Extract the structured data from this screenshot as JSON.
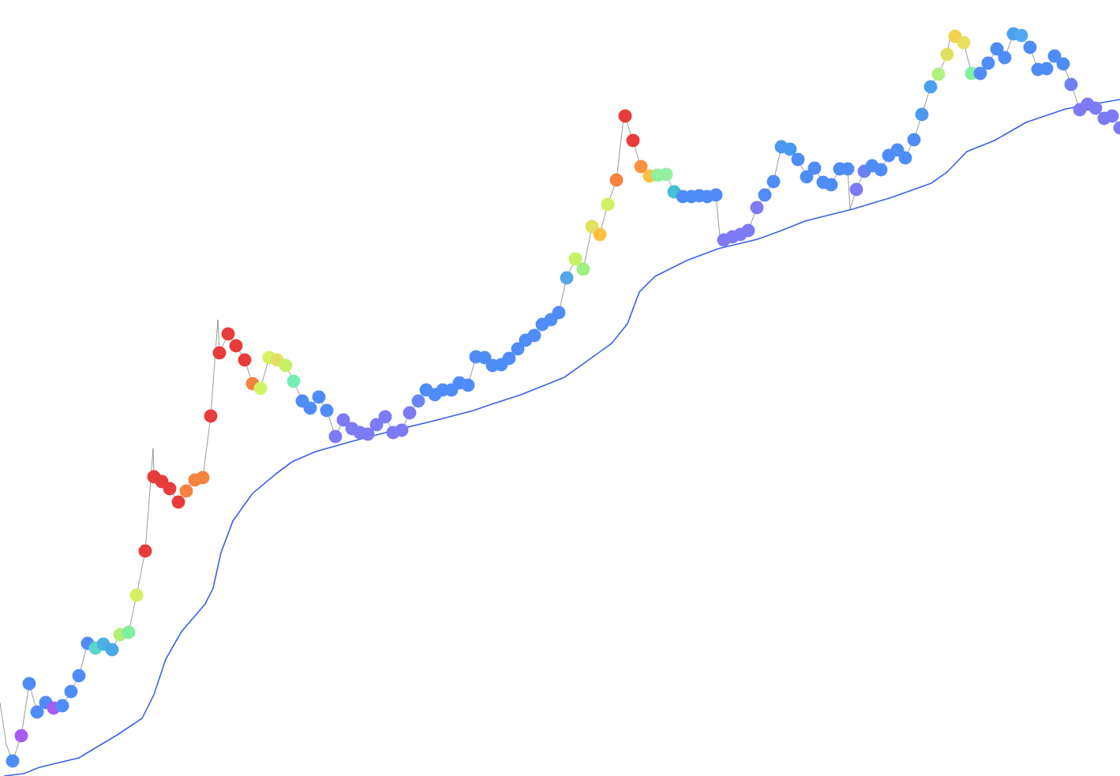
{
  "chart_data": {
    "type": "scatter",
    "xlim": [
      0,
      1419
    ],
    "ylim": [
      0,
      983
    ],
    "grid": false,
    "tick_labels": false,
    "series": [
      {
        "type": "line",
        "color": "#999999",
        "x": [
          0,
          8,
          16,
          27,
          37,
          47,
          58,
          68,
          79,
          90,
          100,
          111,
          121,
          131,
          142,
          152,
          163,
          173,
          184,
          194,
          195,
          205,
          215,
          226,
          236,
          247,
          257,
          267,
          276,
          278,
          289,
          299,
          310,
          320,
          330,
          341,
          351,
          362,
          372,
          383,
          393,
          404,
          414,
          425,
          435,
          446,
          456,
          466,
          477,
          488,
          498,
          509,
          519,
          530,
          540,
          551,
          561,
          572,
          582,
          593,
          603,
          614,
          624,
          635,
          645,
          656,
          666,
          677,
          687,
          698,
          708,
          718,
          729,
          739,
          750,
          760,
          770,
          781,
          790,
          792,
          802,
          812,
          823,
          833,
          844,
          854,
          865,
          876,
          886,
          896,
          907,
          912,
          917,
          928,
          938,
          948,
          959,
          969,
          980,
          990,
          1001,
          1011,
          1022,
          1032,
          1043,
          1053,
          1064,
          1074,
          1077,
          1085,
          1095,
          1105,
          1116,
          1126,
          1137,
          1147,
          1158,
          1168,
          1179,
          1189,
          1200,
          1205,
          1210,
          1221,
          1231,
          1242,
          1252,
          1263,
          1273,
          1284,
          1294,
          1305,
          1315,
          1326,
          1336,
          1347,
          1357,
          1368,
          1378,
          1388,
          1399,
          1409,
          1419
        ],
        "values": [
          93,
          40,
          19,
          51,
          117,
          81,
          93,
          86,
          89,
          107,
          127,
          168,
          162,
          167,
          160,
          179,
          182,
          229,
          285,
          415,
          379,
          373,
          364,
          347,
          361,
          375,
          378,
          456,
          578,
          536,
          560,
          545,
          527,
          497,
          491,
          530,
          527,
          520,
          500,
          475,
          466,
          480,
          463,
          430,
          451,
          440,
          435,
          433,
          445,
          455,
          435,
          438,
          460,
          475,
          489,
          483,
          489,
          489,
          498,
          495,
          531,
          530,
          520,
          521,
          529,
          541,
          552,
          558,
          572,
          578,
          587,
          631,
          655,
          642,
          696,
          686,
          724,
          755,
          833,
          836,
          805,
          772,
          760,
          761,
          762,
          740,
          734,
          734,
          735,
          734,
          736,
          683,
          679,
          683,
          686,
          691,
          720,
          736,
          753,
          797,
          794,
          781,
          759,
          770,
          752,
          749,
          769,
          769,
          718,
          743,
          766,
          773,
          768,
          786,
          793,
          783,
          806,
          838,
          873,
          889,
          914,
          943,
          937,
          929,
          890,
          890,
          903,
          921,
          910,
          940,
          938,
          923,
          895,
          896,
          912,
          902,
          876,
          844,
          851,
          846,
          833,
          836,
          821
        ]
      },
      {
        "type": "line",
        "color": "#3a62e8",
        "x": [
          5,
          30,
          50,
          100,
          120,
          150,
          180,
          195,
          210,
          230,
          260,
          270,
          280,
          295,
          320,
          350,
          370,
          400,
          450,
          500,
          550,
          600,
          620,
          660,
          715,
          740,
          775,
          795,
          810,
          830,
          870,
          910,
          960,
          990,
          1020,
          1080,
          1130,
          1180,
          1200,
          1225,
          1260,
          1300,
          1350,
          1419
        ],
        "values": [
          0,
          3,
          11,
          23,
          35,
          53,
          73,
          103,
          148,
          183,
          218,
          238,
          283,
          323,
          358,
          383,
          398,
          411,
          425,
          438,
          450,
          463,
          470,
          483,
          505,
          523,
          548,
          573,
          613,
          633,
          653,
          668,
          680,
          691,
          703,
          718,
          733,
          751,
          765,
          791,
          805,
          828,
          845,
          857
        ]
      },
      {
        "type": "scatter",
        "marker": "circle",
        "x": [
          16,
          27,
          37,
          47,
          58,
          68,
          79,
          90,
          100,
          111,
          121,
          131,
          142,
          152,
          163,
          173,
          184,
          195,
          205,
          215,
          226,
          236,
          247,
          257,
          267,
          278,
          289,
          299,
          310,
          320,
          330,
          341,
          351,
          362,
          372,
          383,
          393,
          404,
          414,
          425,
          435,
          446,
          456,
          466,
          477,
          488,
          498,
          509,
          519,
          530,
          540,
          551,
          561,
          572,
          582,
          593,
          603,
          614,
          624,
          635,
          645,
          656,
          666,
          677,
          687,
          698,
          708,
          718,
          729,
          739,
          750,
          760,
          770,
          781,
          792,
          802,
          812,
          823,
          833,
          844,
          854,
          865,
          876,
          886,
          896,
          907,
          917,
          928,
          938,
          948,
          959,
          969,
          980,
          990,
          1001,
          1011,
          1022,
          1032,
          1043,
          1053,
          1064,
          1074,
          1085,
          1095,
          1105,
          1116,
          1126,
          1137,
          1147,
          1158,
          1168,
          1179,
          1189,
          1200,
          1210,
          1221,
          1231,
          1242,
          1252,
          1263,
          1273,
          1284,
          1294,
          1305,
          1315,
          1326,
          1336,
          1347,
          1357,
          1368,
          1378,
          1388,
          1399,
          1409,
          1419
        ],
        "values": [
          19,
          51,
          117,
          81,
          93,
          86,
          89,
          107,
          127,
          168,
          162,
          167,
          160,
          179,
          182,
          229,
          285,
          379,
          373,
          364,
          347,
          361,
          375,
          378,
          456,
          536,
          560,
          545,
          527,
          497,
          491,
          530,
          527,
          520,
          500,
          475,
          466,
          480,
          463,
          430,
          451,
          440,
          435,
          433,
          445,
          455,
          435,
          438,
          460,
          475,
          489,
          483,
          489,
          489,
          498,
          495,
          531,
          530,
          520,
          521,
          529,
          541,
          552,
          558,
          572,
          578,
          587,
          631,
          655,
          642,
          696,
          686,
          724,
          755,
          836,
          805,
          772,
          760,
          761,
          762,
          740,
          734,
          734,
          735,
          734,
          736,
          679,
          683,
          686,
          691,
          720,
          736,
          753,
          797,
          794,
          781,
          759,
          770,
          752,
          749,
          769,
          769,
          743,
          766,
          773,
          768,
          786,
          793,
          783,
          806,
          838,
          873,
          889,
          914,
          937,
          929,
          890,
          890,
          903,
          921,
          910,
          940,
          938,
          923,
          895,
          896,
          912,
          902,
          876,
          844,
          851,
          846,
          833,
          836,
          821
        ],
        "colors": [
          "#4f8cf7",
          "#a55cf0",
          "#4f8cf7",
          "#4f8cf7",
          "#4f8cf7",
          "#a55cf0",
          "#4f8cf7",
          "#4f8cf7",
          "#4f8cf7",
          "#4f8cf7",
          "#5ad6c8",
          "#4fb0e6",
          "#4aa8e8",
          "#b4f075",
          "#7df0a0",
          "#d4f060",
          "#e83b3b",
          "#e83b3b",
          "#e83b3b",
          "#e83b3b",
          "#e83b3b",
          "#f5823f",
          "#f5823f",
          "#f5823f",
          "#e83b3b",
          "#e83b3b",
          "#e83b3b",
          "#e83b3b",
          "#e83b3b",
          "#f5823f",
          "#cff565",
          "#d8f060",
          "#e2e262",
          "#c8f065",
          "#72f0b4",
          "#4f8cf7",
          "#4f8cf7",
          "#4f8cf7",
          "#4f8cf7",
          "#7d7af5",
          "#7d7af5",
          "#7d7af5",
          "#7d7af5",
          "#7d7af5",
          "#7d7af5",
          "#7d7af5",
          "#7d7af5",
          "#7d7af5",
          "#7d7af5",
          "#6886f6",
          "#4f8cf7",
          "#4f8cf7",
          "#4f8cf7",
          "#4f8cf7",
          "#4f8cf7",
          "#4f8cf7",
          "#4f8cf7",
          "#4f8cf7",
          "#4f8cf7",
          "#4f8cf7",
          "#4f8cf7",
          "#4f8cf7",
          "#4f8cf7",
          "#4f8cf7",
          "#4f8cf7",
          "#4f8cf7",
          "#4f8cf7",
          "#50a8e8",
          "#c8f065",
          "#a0f080",
          "#e0e262",
          "#ffc040",
          "#d0f060",
          "#f5823f",
          "#e83b3b",
          "#e83b3b",
          "#f8903f",
          "#ffc040",
          "#90f0a0",
          "#90f0a0",
          "#42c0d2",
          "#4f8cf7",
          "#4f8cf7",
          "#4f8cf7",
          "#4f8cf7",
          "#4f8cf7",
          "#7d7af5",
          "#7d7af5",
          "#7d7af5",
          "#7d7af5",
          "#7d7af5",
          "#4f8cf7",
          "#4f8cf7",
          "#4a98f0",
          "#4a98f0",
          "#4f8cf7",
          "#4f8cf7",
          "#4f8cf7",
          "#4f8cf7",
          "#4f8cf7",
          "#4f8cf7",
          "#4f8cf7",
          "#7d7af5",
          "#6a80f5",
          "#4f8cf7",
          "#4f8cf7",
          "#4f8cf7",
          "#4f8cf7",
          "#4f8cf7",
          "#4f8cf7",
          "#4a98f0",
          "#4aa0f0",
          "#b0f080",
          "#e0e060",
          "#f2d250",
          "#e8e060",
          "#80f0a0",
          "#4f8cf7",
          "#4f8cf7",
          "#4f8cf7",
          "#4f8cf7",
          "#4aa0f0",
          "#50a8f0",
          "#4f8cf7",
          "#4f8cf7",
          "#4f8cf7",
          "#4f8cf7",
          "#4f8cf7",
          "#7080f5",
          "#7d7af5",
          "#7d7af5",
          "#7d7af5",
          "#7d7af5",
          "#7d7af5",
          "#7d7af5"
        ]
      }
    ]
  }
}
